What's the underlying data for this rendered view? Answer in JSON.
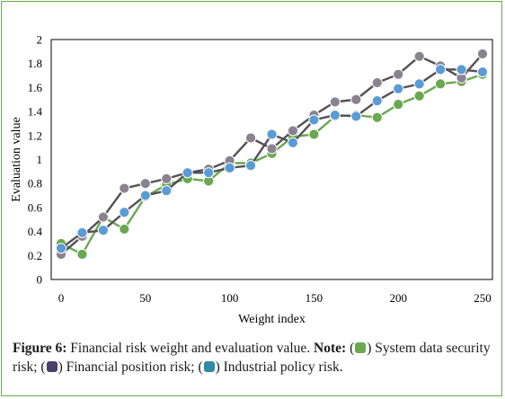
{
  "chart_data": {
    "type": "line",
    "xlabel": "Weight index",
    "ylabel": "Evaluation value",
    "xlim": [
      0,
      250
    ],
    "ylim": [
      0,
      2
    ],
    "x_ticks": [
      "0",
      "50",
      "100",
      "150",
      "200",
      "250"
    ],
    "y_ticks": [
      "0",
      "0.2",
      "0.4",
      "0.6",
      "0.8",
      "1",
      "1.2",
      "1.4",
      "1.6",
      "1.8",
      "2"
    ],
    "x": [
      0,
      12.5,
      25,
      37.5,
      50,
      62.5,
      75,
      87.5,
      100,
      112.5,
      125,
      137.5,
      150,
      162.5,
      175,
      187.5,
      200,
      212.5,
      225,
      237.5,
      250
    ],
    "series": [
      {
        "color": "#6aa84f",
        "values": [
          0.3,
          0.21,
          0.52,
          0.42,
          0.69,
          0.79,
          0.84,
          0.82,
          0.97,
          0.97,
          1.05,
          1.19,
          1.21,
          1.36,
          1.37,
          1.35,
          1.46,
          1.53,
          1.63,
          1.65,
          1.71
        ]
      },
      {
        "color": "#8b8291",
        "values": [
          0.21,
          0.36,
          0.52,
          0.76,
          0.8,
          0.84,
          0.89,
          0.92,
          0.99,
          1.18,
          1.09,
          1.24,
          1.37,
          1.48,
          1.5,
          1.64,
          1.71,
          1.86,
          1.78,
          1.68,
          1.88
        ]
      },
      {
        "color": "#5b9bd5",
        "values": [
          0.26,
          0.39,
          0.41,
          0.56,
          0.7,
          0.74,
          0.89,
          0.89,
          0.93,
          0.95,
          1.21,
          1.14,
          1.33,
          1.37,
          1.36,
          1.49,
          1.59,
          1.63,
          1.75,
          1.75,
          1.73
        ]
      }
    ]
  },
  "caption": {
    "figure_label": "Figure 6:",
    "figure_text": " Financial risk weight and evaluation value. ",
    "note_label": "Note:",
    "item1_pre": " (",
    "item1_post": ") System data security risk; (",
    "item2_post": ") Financial position risk; (",
    "item3_post": ") Industrial policy risk.",
    "swatch_colors": [
      "#6aa84f",
      "#4b3f6b",
      "#2e8ba3"
    ]
  }
}
